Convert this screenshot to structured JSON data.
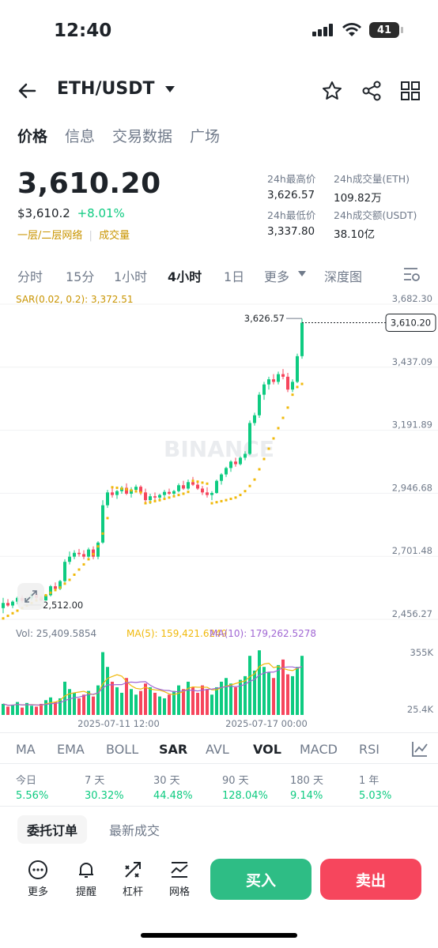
{
  "status": {
    "time": "12:40",
    "battery": "41"
  },
  "header": {
    "pair": "ETH/USDT"
  },
  "tabs": [
    "价格",
    "信息",
    "交易数据",
    "广场"
  ],
  "price": {
    "last": "3,610.20",
    "usd": "$3,610.2",
    "change": "+8.01%",
    "layer": "一层/二层网络",
    "sep": "|",
    "volume_tag": "成交量"
  },
  "stats": {
    "high_label": "24h最高价",
    "high": "3,626.57",
    "vol_eth_label": "24h成交量(ETH)",
    "vol_eth": "109.82万",
    "low_label": "24h最低价",
    "low": "3,337.80",
    "vol_usdt_label": "24h成交额(USDT)",
    "vol_usdt": "38.10亿"
  },
  "intervals": [
    "分时",
    "15分",
    "1小时",
    "4小时",
    "1日",
    "更多",
    "深度图"
  ],
  "sar_label": "SAR(0.02, 0.2): 3,372.51",
  "chart": {
    "y_ticks": [
      "3,682.30",
      "3,437.09",
      "3,191.89",
      "2,946.68",
      "2,701.48",
      "2,456.27"
    ],
    "high_marker": "3,626.57",
    "low_marker": "2,512.00",
    "current": "3,610.20",
    "watermark": "BINANCE"
  },
  "volume": {
    "vol": "Vol: 25,409.5854",
    "ma5": "MA(5): 159,421.6249",
    "ma10": "MA(10): 179,262.5278",
    "y_ticks": [
      "355K",
      "25.4K"
    ],
    "x_ticks": [
      "2025-07-11 12:00",
      "2025-07-17 00:00"
    ]
  },
  "indicators": [
    "MA",
    "EMA",
    "BOLL",
    "SAR",
    "AVL",
    "VOL",
    "MACD",
    "RSI"
  ],
  "performance": [
    {
      "k": "今日",
      "v": "5.56%"
    },
    {
      "k": "7 天",
      "v": "30.32%"
    },
    {
      "k": "30 天",
      "v": "44.48%"
    },
    {
      "k": "90 天",
      "v": "128.04%"
    },
    {
      "k": "180 天",
      "v": "9.14%"
    },
    {
      "k": "1 年",
      "v": "5.03%"
    }
  ],
  "order_tabs": [
    "委托订单",
    "最新成交"
  ],
  "bottom": {
    "more": "更多",
    "alert": "提醒",
    "leverage": "杠杆",
    "grid": "网格",
    "buy": "买入",
    "sell": "卖出"
  },
  "colors": {
    "up": "#0ecb81",
    "down": "#f6465d",
    "sar": "#f0b90b",
    "ma5": "#f0b90b",
    "ma10": "#a066d3"
  },
  "candles": [
    [
      2500,
      2540,
      2480,
      2520
    ],
    [
      2520,
      2535,
      2505,
      2510
    ],
    [
      2510,
      2530,
      2500,
      2525
    ],
    [
      2525,
      2545,
      2515,
      2540
    ],
    [
      2540,
      2550,
      2520,
      2528
    ],
    [
      2528,
      2545,
      2518,
      2538
    ],
    [
      2538,
      2560,
      2530,
      2555
    ],
    [
      2555,
      2560,
      2535,
      2540
    ],
    [
      2540,
      2548,
      2525,
      2530
    ],
    [
      2530,
      2555,
      2528,
      2550
    ],
    [
      2550,
      2590,
      2545,
      2585
    ],
    [
      2585,
      2600,
      2570,
      2575
    ],
    [
      2575,
      2610,
      2570,
      2605
    ],
    [
      2605,
      2690,
      2600,
      2680
    ],
    [
      2680,
      2720,
      2670,
      2700
    ],
    [
      2700,
      2725,
      2690,
      2715
    ],
    [
      2715,
      2730,
      2700,
      2710
    ],
    [
      2710,
      2725,
      2690,
      2700
    ],
    [
      2700,
      2735,
      2695,
      2728
    ],
    [
      2728,
      2740,
      2690,
      2700
    ],
    [
      2700,
      2760,
      2690,
      2755
    ],
    [
      2755,
      2920,
      2750,
      2900
    ],
    [
      2900,
      2960,
      2890,
      2950
    ],
    [
      2950,
      2970,
      2930,
      2940
    ],
    [
      2940,
      2960,
      2925,
      2955
    ],
    [
      2955,
      2975,
      2945,
      2968
    ],
    [
      2968,
      2985,
      2940,
      2945
    ],
    [
      2945,
      2970,
      2930,
      2960
    ],
    [
      2960,
      2980,
      2950,
      2972
    ],
    [
      2972,
      2978,
      2940,
      2950
    ],
    [
      2950,
      2965,
      2910,
      2920
    ],
    [
      2920,
      2945,
      2905,
      2935
    ],
    [
      2935,
      2950,
      2920,
      2930
    ],
    [
      2930,
      2945,
      2915,
      2940
    ],
    [
      2940,
      2960,
      2930,
      2952
    ],
    [
      2952,
      2965,
      2940,
      2945
    ],
    [
      2945,
      2960,
      2935,
      2955
    ],
    [
      2955,
      2985,
      2950,
      2978
    ],
    [
      2978,
      2995,
      2960,
      2965
    ],
    [
      2965,
      3000,
      2960,
      2990
    ],
    [
      2990,
      3010,
      2975,
      2980
    ],
    [
      2980,
      2990,
      2960,
      2965
    ],
    [
      2965,
      2975,
      2940,
      2950
    ],
    [
      2950,
      2970,
      2930,
      2940
    ],
    [
      2940,
      2955,
      2920,
      2948
    ],
    [
      2948,
      3000,
      2945,
      2995
    ],
    [
      2995,
      3025,
      2980,
      3020
    ],
    [
      3020,
      3050,
      3010,
      3045
    ],
    [
      3045,
      3075,
      3030,
      3070
    ],
    [
      3070,
      3085,
      3050,
      3060
    ],
    [
      3060,
      3090,
      3055,
      3085
    ],
    [
      3085,
      3110,
      3075,
      3100
    ],
    [
      3100,
      3230,
      3095,
      3220
    ],
    [
      3220,
      3260,
      3210,
      3250
    ],
    [
      3250,
      3340,
      3240,
      3330
    ],
    [
      3330,
      3380,
      3310,
      3370
    ],
    [
      3370,
      3400,
      3350,
      3390
    ],
    [
      3390,
      3410,
      3370,
      3380
    ],
    [
      3380,
      3420,
      3370,
      3410
    ],
    [
      3410,
      3430,
      3390,
      3400
    ],
    [
      3400,
      3415,
      3340,
      3350
    ],
    [
      3350,
      3390,
      3340,
      3380
    ],
    [
      3380,
      3490,
      3375,
      3480
    ],
    [
      3480,
      3626,
      3470,
      3610
    ]
  ],
  "sar": [
    2460,
    2470,
    2480,
    2490,
    2500,
    2510,
    2520,
    2530,
    2540,
    2550,
    2560,
    2570,
    2580,
    2595,
    2610,
    2630,
    2650,
    2670,
    2690,
    2710,
    2740,
    2790,
    2850,
    2970,
    2968,
    2965,
    2962,
    2958,
    2954,
    2950,
    2908,
    2912,
    2916,
    2920,
    2925,
    2930,
    2935,
    2940,
    2945,
    2952,
    2995,
    2992,
    2988,
    2984,
    2908,
    2912,
    2916,
    2920,
    2925,
    2930,
    2940,
    2955,
    2975,
    3000,
    3040,
    3080,
    3120,
    3160,
    3200,
    3240,
    3280,
    3330,
    3360,
    3372
  ],
  "volumes": [
    60,
    45,
    55,
    70,
    40,
    65,
    50,
    45,
    60,
    80,
    95,
    70,
    90,
    180,
    140,
    120,
    90,
    110,
    130,
    100,
    160,
    340,
    260,
    180,
    150,
    120,
    200,
    140,
    110,
    130,
    170,
    150,
    120,
    100,
    90,
    110,
    130,
    160,
    140,
    180,
    150,
    120,
    160,
    140,
    110,
    150,
    180,
    200,
    170,
    150,
    190,
    210,
    320,
    240,
    350,
    260,
    230,
    200,
    270,
    300,
    220,
    210,
    260,
    320
  ]
}
